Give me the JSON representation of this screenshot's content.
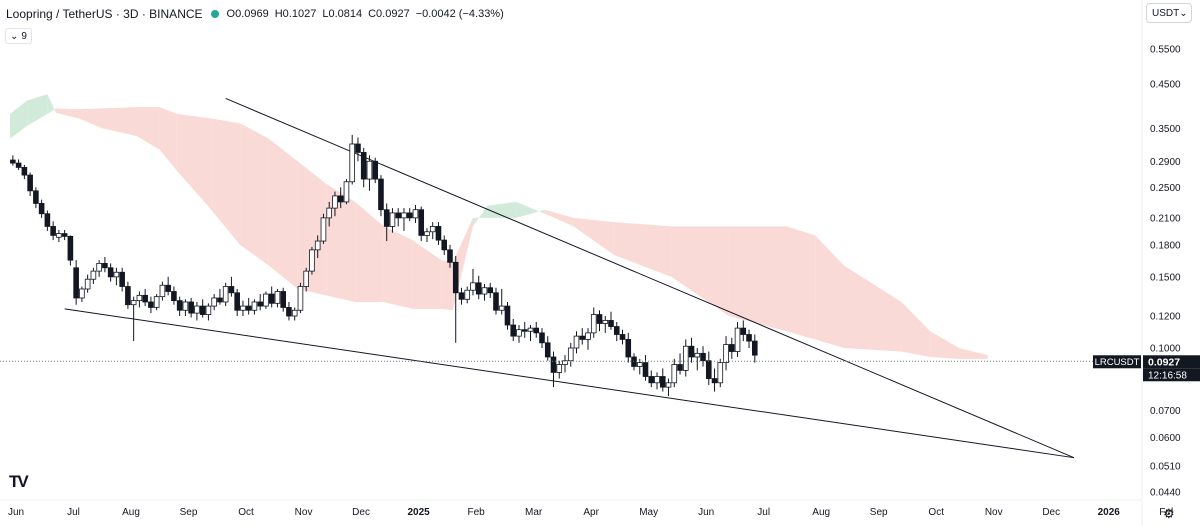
{
  "header": {
    "title": "Loopring / TetherUS · 3D · BINANCE",
    "open": "O0.0969",
    "high": "H0.1027",
    "low": "L0.0814",
    "close": "C0.0927",
    "change": "−0.0042 (−4.33%)",
    "status_color": "#26a69a"
  },
  "indicator": {
    "label": "9",
    "icon": "chevron-down-icon"
  },
  "currency": {
    "label": "USDT",
    "icon": "chevron-down-icon"
  },
  "price_label": {
    "symbol": "LRCUSDT",
    "price": "0.0927",
    "countdown": "12:16:58"
  },
  "logo": "TV",
  "chart_data": {
    "type": "candlestick",
    "symbol": "LRCUSDT",
    "timeframe": "3D",
    "scale": "log",
    "ylim": [
      0.043,
      0.62
    ],
    "time_range": [
      0,
      19.3
    ],
    "y_ticks": [
      {
        "value": 0.55,
        "label": "0.5500"
      },
      {
        "value": 0.45,
        "label": "0.4500"
      },
      {
        "value": 0.35,
        "label": "0.3500"
      },
      {
        "value": 0.29,
        "label": "0.2900"
      },
      {
        "value": 0.25,
        "label": "0.2500"
      },
      {
        "value": 0.21,
        "label": "0.2100"
      },
      {
        "value": 0.18,
        "label": "0.1800"
      },
      {
        "value": 0.15,
        "label": "0.1500"
      },
      {
        "value": 0.12,
        "label": "0.1200"
      },
      {
        "value": 0.1,
        "label": "0.1000"
      },
      {
        "value": 0.07,
        "label": "0.0700"
      },
      {
        "value": 0.06,
        "label": "0.0600"
      },
      {
        "value": 0.051,
        "label": "0.0510"
      },
      {
        "value": 0.044,
        "label": "0.0440"
      }
    ],
    "x_ticks": [
      {
        "t": 0,
        "label": "Jun"
      },
      {
        "t": 1,
        "label": "Jul"
      },
      {
        "t": 2,
        "label": "Aug"
      },
      {
        "t": 3,
        "label": "Sep"
      },
      {
        "t": 4,
        "label": "Oct"
      },
      {
        "t": 5,
        "label": "Nov"
      },
      {
        "t": 6,
        "label": "Dec"
      },
      {
        "t": 7,
        "label": "2025"
      },
      {
        "t": 8,
        "label": "Feb"
      },
      {
        "t": 9,
        "label": "Mar"
      },
      {
        "t": 10,
        "label": "Apr"
      },
      {
        "t": 11,
        "label": "May"
      },
      {
        "t": 12,
        "label": "Jun"
      },
      {
        "t": 13,
        "label": "Jul"
      },
      {
        "t": 14,
        "label": "Aug"
      },
      {
        "t": 15,
        "label": "Sep"
      },
      {
        "t": 16,
        "label": "Oct"
      },
      {
        "t": 17,
        "label": "Nov"
      },
      {
        "t": 18,
        "label": "Dec"
      },
      {
        "t": 19,
        "label": "2026"
      },
      {
        "t": 20,
        "label": "Fel"
      }
    ],
    "last_price": 0.0927,
    "colors": {
      "up": "#ffffff",
      "down": "#131722",
      "outline": "#131722",
      "cloud_bear": "#f9d6d3",
      "cloud_bull": "#cde8d5",
      "trendline": "#131722"
    },
    "trendlines": [
      {
        "name": "upper-resistance",
        "from": {
          "t": 3.75,
          "price": 0.415
        },
        "to": {
          "t": 18.5,
          "price": 0.0535
        }
      },
      {
        "name": "lower-support",
        "from": {
          "t": 0.95,
          "price": 0.125
        },
        "to": {
          "t": 18.5,
          "price": 0.0535
        }
      }
    ],
    "ichimoku_cloud": [
      {
        "t": 0.0,
        "a": 0.38,
        "b": 0.33
      },
      {
        "t": 0.3,
        "a": 0.41,
        "b": 0.355
      },
      {
        "t": 0.65,
        "a": 0.425,
        "b": 0.38
      },
      {
        "t": 0.8,
        "a": 0.382,
        "b": 0.392
      },
      {
        "t": 1.2,
        "a": 0.37,
        "b": 0.39
      },
      {
        "t": 1.6,
        "a": 0.35,
        "b": 0.392
      },
      {
        "t": 2.2,
        "a": 0.335,
        "b": 0.395
      },
      {
        "t": 2.6,
        "a": 0.31,
        "b": 0.395
      },
      {
        "t": 2.9,
        "a": 0.275,
        "b": 0.38
      },
      {
        "t": 3.5,
        "a": 0.22,
        "b": 0.37
      },
      {
        "t": 4.0,
        "a": 0.18,
        "b": 0.36
      },
      {
        "t": 4.5,
        "a": 0.16,
        "b": 0.33
      },
      {
        "t": 5.0,
        "a": 0.14,
        "b": 0.29
      },
      {
        "t": 5.5,
        "a": 0.135,
        "b": 0.255
      },
      {
        "t": 6.0,
        "a": 0.13,
        "b": 0.23
      },
      {
        "t": 6.5,
        "a": 0.13,
        "b": 0.2
      },
      {
        "t": 7.0,
        "a": 0.125,
        "b": 0.185
      },
      {
        "t": 7.5,
        "a": 0.125,
        "b": 0.165
      },
      {
        "t": 7.7,
        "a": 0.124,
        "b": 0.163
      },
      {
        "t": 8.05,
        "a": 0.2,
        "b": 0.21
      },
      {
        "t": 8.3,
        "a": 0.225,
        "b": 0.21
      },
      {
        "t": 8.8,
        "a": 0.23,
        "b": 0.21
      },
      {
        "t": 9.3,
        "a": 0.215,
        "b": 0.22
      },
      {
        "t": 9.8,
        "a": 0.2,
        "b": 0.21
      },
      {
        "t": 10.5,
        "a": 0.17,
        "b": 0.205
      },
      {
        "t": 11.5,
        "a": 0.15,
        "b": 0.2
      },
      {
        "t": 12.5,
        "a": 0.12,
        "b": 0.2
      },
      {
        "t": 13.5,
        "a": 0.11,
        "b": 0.2
      },
      {
        "t": 14.0,
        "a": 0.105,
        "b": 0.19
      },
      {
        "t": 14.5,
        "a": 0.1,
        "b": 0.16
      },
      {
        "t": 15.5,
        "a": 0.098,
        "b": 0.13
      },
      {
        "t": 16.0,
        "a": 0.095,
        "b": 0.11
      },
      {
        "t": 16.5,
        "a": 0.094,
        "b": 0.1
      },
      {
        "t": 17.0,
        "a": 0.094,
        "b": 0.096
      }
    ],
    "candles": [
      [
        0.05,
        0.292,
        0.3,
        0.283,
        0.287
      ],
      [
        0.15,
        0.287,
        0.293,
        0.276,
        0.28
      ],
      [
        0.25,
        0.28,
        0.284,
        0.262,
        0.268
      ],
      [
        0.35,
        0.268,
        0.272,
        0.238,
        0.245
      ],
      [
        0.45,
        0.245,
        0.25,
        0.222,
        0.228
      ],
      [
        0.55,
        0.228,
        0.233,
        0.21,
        0.215
      ],
      [
        0.65,
        0.215,
        0.219,
        0.195,
        0.2
      ],
      [
        0.75,
        0.2,
        0.206,
        0.185,
        0.19
      ],
      [
        0.85,
        0.188,
        0.196,
        0.183,
        0.192
      ],
      [
        0.95,
        0.192,
        0.196,
        0.185,
        0.189
      ],
      [
        1.05,
        0.189,
        0.19,
        0.16,
        0.165
      ],
      [
        1.15,
        0.158,
        0.165,
        0.128,
        0.133
      ],
      [
        1.25,
        0.133,
        0.142,
        0.13,
        0.14
      ],
      [
        1.35,
        0.14,
        0.152,
        0.137,
        0.148
      ],
      [
        1.45,
        0.148,
        0.158,
        0.144,
        0.155
      ],
      [
        1.55,
        0.155,
        0.165,
        0.15,
        0.162
      ],
      [
        1.65,
        0.162,
        0.168,
        0.154,
        0.158
      ],
      [
        1.75,
        0.158,
        0.162,
        0.146,
        0.15
      ],
      [
        1.85,
        0.15,
        0.158,
        0.143,
        0.154
      ],
      [
        1.95,
        0.154,
        0.158,
        0.138,
        0.142
      ],
      [
        2.05,
        0.142,
        0.146,
        0.125,
        0.128
      ],
      [
        2.15,
        0.128,
        0.134,
        0.104,
        0.131
      ],
      [
        2.25,
        0.131,
        0.138,
        0.126,
        0.135
      ],
      [
        2.35,
        0.135,
        0.14,
        0.127,
        0.13
      ],
      [
        2.45,
        0.13,
        0.134,
        0.122,
        0.126
      ],
      [
        2.55,
        0.126,
        0.136,
        0.124,
        0.134
      ],
      [
        2.65,
        0.134,
        0.146,
        0.131,
        0.143
      ],
      [
        2.75,
        0.143,
        0.15,
        0.135,
        0.138
      ],
      [
        2.85,
        0.138,
        0.142,
        0.128,
        0.131
      ],
      [
        2.95,
        0.131,
        0.134,
        0.12,
        0.124
      ],
      [
        3.05,
        0.124,
        0.132,
        0.12,
        0.13
      ],
      [
        3.15,
        0.13,
        0.133,
        0.119,
        0.122
      ],
      [
        3.25,
        0.122,
        0.13,
        0.117,
        0.127
      ],
      [
        3.35,
        0.127,
        0.132,
        0.119,
        0.121
      ],
      [
        3.45,
        0.121,
        0.129,
        0.117,
        0.127
      ],
      [
        3.55,
        0.127,
        0.136,
        0.124,
        0.133
      ],
      [
        3.65,
        0.133,
        0.14,
        0.128,
        0.13
      ],
      [
        3.75,
        0.13,
        0.145,
        0.127,
        0.142
      ],
      [
        3.85,
        0.142,
        0.15,
        0.134,
        0.137
      ],
      [
        3.95,
        0.137,
        0.14,
        0.12,
        0.124
      ],
      [
        4.05,
        0.124,
        0.131,
        0.12,
        0.127
      ],
      [
        4.15,
        0.127,
        0.133,
        0.121,
        0.124
      ],
      [
        4.25,
        0.124,
        0.132,
        0.121,
        0.13
      ],
      [
        4.35,
        0.13,
        0.136,
        0.124,
        0.127
      ],
      [
        4.45,
        0.127,
        0.138,
        0.125,
        0.136
      ],
      [
        4.55,
        0.136,
        0.142,
        0.126,
        0.129
      ],
      [
        4.65,
        0.129,
        0.14,
        0.126,
        0.138
      ],
      [
        4.75,
        0.138,
        0.141,
        0.123,
        0.126
      ],
      [
        4.85,
        0.126,
        0.13,
        0.117,
        0.12
      ],
      [
        4.95,
        0.12,
        0.126,
        0.117,
        0.124
      ],
      [
        5.05,
        0.124,
        0.145,
        0.122,
        0.142
      ],
      [
        5.15,
        0.142,
        0.158,
        0.138,
        0.155
      ],
      [
        5.25,
        0.155,
        0.178,
        0.152,
        0.175
      ],
      [
        5.35,
        0.175,
        0.19,
        0.167,
        0.184
      ],
      [
        5.45,
        0.184,
        0.215,
        0.181,
        0.21
      ],
      [
        5.55,
        0.21,
        0.23,
        0.2,
        0.222
      ],
      [
        5.65,
        0.222,
        0.244,
        0.212,
        0.238
      ],
      [
        5.75,
        0.238,
        0.25,
        0.222,
        0.23
      ],
      [
        5.85,
        0.23,
        0.262,
        0.227,
        0.258
      ],
      [
        5.95,
        0.258,
        0.337,
        0.254,
        0.32
      ],
      [
        6.05,
        0.32,
        0.332,
        0.29,
        0.305
      ],
      [
        6.15,
        0.305,
        0.313,
        0.25,
        0.262
      ],
      [
        6.25,
        0.262,
        0.3,
        0.245,
        0.29
      ],
      [
        6.35,
        0.29,
        0.296,
        0.256,
        0.262
      ],
      [
        6.45,
        0.262,
        0.268,
        0.212,
        0.22
      ],
      [
        6.55,
        0.22,
        0.228,
        0.184,
        0.2
      ],
      [
        6.65,
        0.2,
        0.222,
        0.193,
        0.216
      ],
      [
        6.75,
        0.216,
        0.222,
        0.2,
        0.21
      ],
      [
        6.85,
        0.21,
        0.222,
        0.195,
        0.216
      ],
      [
        6.95,
        0.216,
        0.222,
        0.206,
        0.21
      ],
      [
        7.05,
        0.21,
        0.226,
        0.204,
        0.22
      ],
      [
        7.15,
        0.22,
        0.224,
        0.184,
        0.19
      ],
      [
        7.25,
        0.19,
        0.198,
        0.183,
        0.194
      ],
      [
        7.35,
        0.194,
        0.205,
        0.186,
        0.2
      ],
      [
        7.45,
        0.2,
        0.205,
        0.18,
        0.185
      ],
      [
        7.55,
        0.185,
        0.19,
        0.17,
        0.175
      ],
      [
        7.65,
        0.175,
        0.18,
        0.158,
        0.163
      ],
      [
        7.75,
        0.163,
        0.169,
        0.103,
        0.137
      ],
      [
        7.85,
        0.137,
        0.141,
        0.128,
        0.132
      ],
      [
        7.95,
        0.132,
        0.142,
        0.129,
        0.139
      ],
      [
        8.05,
        0.139,
        0.157,
        0.135,
        0.145
      ],
      [
        8.15,
        0.145,
        0.151,
        0.132,
        0.136
      ],
      [
        8.25,
        0.136,
        0.144,
        0.131,
        0.141
      ],
      [
        8.35,
        0.141,
        0.145,
        0.133,
        0.137
      ],
      [
        8.45,
        0.137,
        0.141,
        0.121,
        0.124
      ],
      [
        8.55,
        0.124,
        0.14,
        0.121,
        0.127
      ],
      [
        8.65,
        0.127,
        0.13,
        0.111,
        0.114
      ],
      [
        8.75,
        0.114,
        0.118,
        0.104,
        0.107
      ],
      [
        8.85,
        0.107,
        0.114,
        0.103,
        0.111
      ],
      [
        8.95,
        0.111,
        0.116,
        0.106,
        0.11
      ],
      [
        9.05,
        0.11,
        0.114,
        0.104,
        0.112
      ],
      [
        9.15,
        0.112,
        0.116,
        0.106,
        0.109
      ],
      [
        9.25,
        0.109,
        0.112,
        0.1,
        0.103
      ],
      [
        9.35,
        0.103,
        0.107,
        0.093,
        0.095
      ],
      [
        9.45,
        0.095,
        0.098,
        0.08,
        0.087
      ],
      [
        9.55,
        0.087,
        0.093,
        0.084,
        0.091
      ],
      [
        9.65,
        0.091,
        0.096,
        0.087,
        0.093
      ],
      [
        9.75,
        0.093,
        0.103,
        0.09,
        0.1
      ],
      [
        9.85,
        0.1,
        0.11,
        0.097,
        0.107
      ],
      [
        9.95,
        0.107,
        0.112,
        0.102,
        0.105
      ],
      [
        10.05,
        0.105,
        0.112,
        0.099,
        0.109
      ],
      [
        10.15,
        0.109,
        0.126,
        0.106,
        0.121
      ],
      [
        10.25,
        0.121,
        0.124,
        0.11,
        0.115
      ],
      [
        10.35,
        0.115,
        0.12,
        0.109,
        0.117
      ],
      [
        10.45,
        0.117,
        0.123,
        0.111,
        0.113
      ],
      [
        10.55,
        0.113,
        0.116,
        0.104,
        0.108
      ],
      [
        10.65,
        0.108,
        0.111,
        0.102,
        0.105
      ],
      [
        10.75,
        0.105,
        0.109,
        0.092,
        0.095
      ],
      [
        10.85,
        0.095,
        0.097,
        0.088,
        0.09
      ],
      [
        10.95,
        0.09,
        0.094,
        0.086,
        0.092
      ],
      [
        11.05,
        0.092,
        0.096,
        0.083,
        0.085
      ],
      [
        11.15,
        0.085,
        0.088,
        0.08,
        0.082
      ],
      [
        11.25,
        0.082,
        0.087,
        0.079,
        0.085
      ],
      [
        11.35,
        0.085,
        0.089,
        0.078,
        0.08
      ],
      [
        11.45,
        0.08,
        0.084,
        0.076,
        0.082
      ],
      [
        11.55,
        0.082,
        0.094,
        0.08,
        0.091
      ],
      [
        11.65,
        0.091,
        0.097,
        0.086,
        0.088
      ],
      [
        11.75,
        0.088,
        0.105,
        0.085,
        0.101
      ],
      [
        11.85,
        0.101,
        0.106,
        0.092,
        0.095
      ],
      [
        11.95,
        0.095,
        0.1,
        0.088,
        0.097
      ],
      [
        12.05,
        0.097,
        0.101,
        0.09,
        0.093
      ],
      [
        12.15,
        0.093,
        0.098,
        0.081,
        0.084
      ],
      [
        12.25,
        0.084,
        0.089,
        0.078,
        0.082
      ],
      [
        12.35,
        0.082,
        0.094,
        0.08,
        0.092
      ],
      [
        12.45,
        0.092,
        0.107,
        0.088,
        0.102
      ],
      [
        12.55,
        0.102,
        0.106,
        0.094,
        0.098
      ],
      [
        12.65,
        0.098,
        0.116,
        0.095,
        0.112
      ],
      [
        12.75,
        0.112,
        0.117,
        0.104,
        0.108
      ],
      [
        12.85,
        0.108,
        0.111,
        0.1,
        0.104
      ],
      [
        12.95,
        0.104,
        0.108,
        0.092,
        0.096
      ]
    ]
  }
}
